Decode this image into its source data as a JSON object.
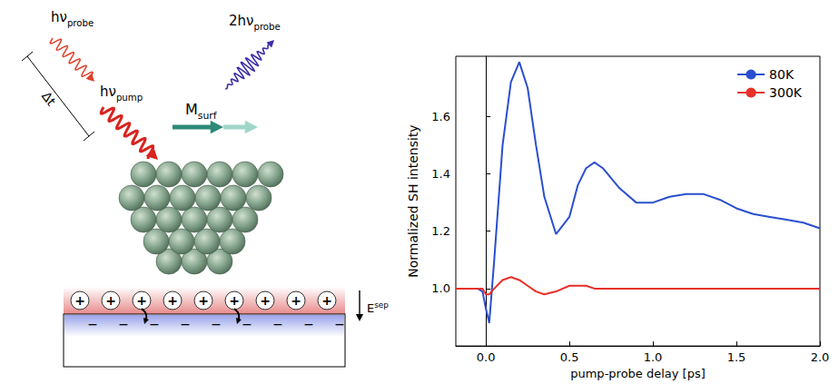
{
  "diagram": {
    "probe_label": {
      "text": "hν",
      "sub": "probe"
    },
    "pump_label": {
      "text": "hν",
      "sub": "pump"
    },
    "delay_label": "Δt",
    "magnetization_label": {
      "text": "M",
      "sub": "surf"
    },
    "second_harmonic_label": {
      "text": "2hν",
      "sub": "probe"
    },
    "field_label": {
      "text": "E",
      "sup": "sep"
    },
    "positive_charge": "+",
    "negative_charge": "−"
  },
  "chart_data": {
    "type": "line",
    "x_label": "pump-probe delay [ps]",
    "y_label": "Normalized SH intensity",
    "x": [
      -0.18,
      -0.1,
      -0.05,
      -0.02,
      0.0,
      0.02,
      0.05,
      0.1,
      0.15,
      0.2,
      0.25,
      0.3,
      0.35,
      0.42,
      0.5,
      0.55,
      0.6,
      0.65,
      0.7,
      0.8,
      0.9,
      1.0,
      1.1,
      1.2,
      1.3,
      1.4,
      1.5,
      1.6,
      1.7,
      1.8,
      1.9,
      2.0
    ],
    "series": [
      {
        "name": "80K",
        "color": "#2a4fd0",
        "values": [
          1.0,
          1.0,
          1.0,
          0.99,
          0.93,
          0.88,
          1.1,
          1.5,
          1.72,
          1.79,
          1.7,
          1.5,
          1.32,
          1.19,
          1.25,
          1.36,
          1.42,
          1.44,
          1.42,
          1.35,
          1.3,
          1.3,
          1.32,
          1.33,
          1.33,
          1.31,
          1.28,
          1.26,
          1.25,
          1.24,
          1.23,
          1.21
        ]
      },
      {
        "name": "300K",
        "color": "#e8302a",
        "values": [
          1.0,
          1.0,
          1.0,
          1.0,
          0.98,
          0.98,
          1.0,
          1.03,
          1.04,
          1.03,
          1.01,
          0.99,
          0.98,
          0.99,
          1.01,
          1.01,
          1.01,
          1.0,
          1.0,
          1.0,
          1.0,
          1.0,
          1.0,
          1.0,
          1.0,
          1.0,
          1.0,
          1.0,
          1.0,
          1.0,
          1.0,
          1.0
        ]
      }
    ],
    "xlim": [
      -0.18,
      2.0
    ],
    "ylim": [
      0.8,
      1.81
    ],
    "xticks": [
      {
        "value": 0,
        "label": "0.0"
      },
      {
        "value": 0.5,
        "label": "0.5"
      },
      {
        "value": 1,
        "label": "1.0"
      },
      {
        "value": 1.5,
        "label": "1.5"
      },
      {
        "value": 2,
        "label": "2.0"
      }
    ],
    "yticks": [
      {
        "value": 1,
        "label": "1.0"
      },
      {
        "value": 1.2,
        "label": "1.2"
      },
      {
        "value": 1.4,
        "label": "1.4"
      },
      {
        "value": 1.6,
        "label": "1.6"
      }
    ],
    "legend": "upper right",
    "grid": false
  }
}
